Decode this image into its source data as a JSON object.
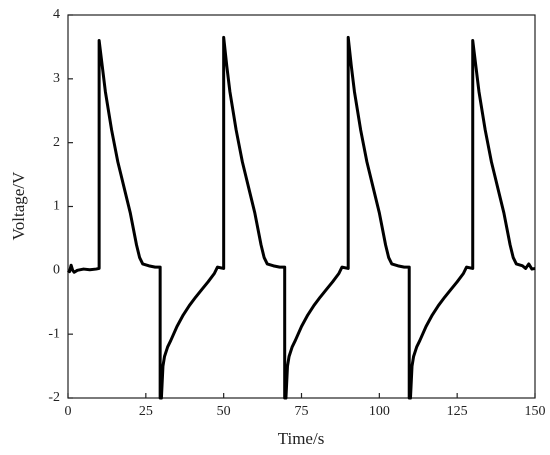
{
  "chart_data": {
    "type": "line",
    "xlabel": "Time/s",
    "ylabel": "Voltage/V",
    "xlim": [
      0,
      150
    ],
    "xticks": [
      0,
      25,
      50,
      75,
      100,
      125,
      150
    ],
    "ylim": [
      -2,
      4
    ],
    "yticks": [
      -2,
      -1,
      0,
      1,
      2,
      3,
      4
    ],
    "color": "#000000",
    "x": [
      0,
      0.5,
      1,
      1.5,
      2,
      3,
      5,
      7,
      9,
      10,
      10,
      11,
      12,
      13,
      14,
      15,
      16,
      17,
      18,
      19,
      20,
      21,
      22,
      23,
      24,
      26,
      28,
      29.6,
      29.6,
      30,
      30.5,
      31,
      32,
      33,
      35,
      37,
      39,
      41,
      43,
      45,
      47,
      48,
      50,
      50,
      51,
      52,
      53,
      54,
      55,
      56,
      57,
      58,
      59,
      60,
      61,
      62,
      63,
      64,
      66,
      68,
      69.6,
      69.6,
      70,
      70.5,
      71,
      72,
      73,
      75,
      77,
      79,
      81,
      83,
      85,
      87,
      88,
      90,
      90,
      91,
      92,
      93,
      94,
      95,
      96,
      97,
      98,
      99,
      100,
      101,
      102,
      103,
      104,
      106,
      108,
      109.6,
      109.6,
      110,
      110.5,
      111,
      112,
      113,
      115,
      117,
      119,
      121,
      123,
      125,
      127,
      128,
      130,
      130,
      131,
      132,
      133,
      134,
      135,
      136,
      137,
      138,
      139,
      140,
      141,
      142,
      143,
      144,
      146,
      147,
      148,
      149,
      150
    ],
    "values": [
      0,
      -0.02,
      0.08,
      0,
      -0.03,
      0,
      0.02,
      0.01,
      0.02,
      0.03,
      3.6,
      3.2,
      2.8,
      2.5,
      2.2,
      1.95,
      1.7,
      1.5,
      1.3,
      1.1,
      0.9,
      0.65,
      0.4,
      0.2,
      0.1,
      0.07,
      0.05,
      0.05,
      -2,
      -2,
      -1.5,
      -1.35,
      -1.2,
      -1.1,
      -0.88,
      -0.7,
      -0.55,
      -0.42,
      -0.3,
      -0.18,
      -0.05,
      0.05,
      0.03,
      3.65,
      3.2,
      2.8,
      2.5,
      2.2,
      1.95,
      1.7,
      1.5,
      1.3,
      1.1,
      0.9,
      0.65,
      0.4,
      0.2,
      0.1,
      0.07,
      0.05,
      0.05,
      -2,
      -2,
      -1.5,
      -1.35,
      -1.2,
      -1.1,
      -0.88,
      -0.7,
      -0.55,
      -0.42,
      -0.3,
      -0.18,
      -0.05,
      0.05,
      0.03,
      3.65,
      3.2,
      2.8,
      2.5,
      2.2,
      1.95,
      1.7,
      1.5,
      1.3,
      1.1,
      0.9,
      0.65,
      0.4,
      0.2,
      0.1,
      0.07,
      0.05,
      0.05,
      -2,
      -2,
      -1.5,
      -1.35,
      -1.2,
      -1.1,
      -0.88,
      -0.7,
      -0.55,
      -0.42,
      -0.3,
      -0.18,
      -0.05,
      0.05,
      0.03,
      3.6,
      3.2,
      2.8,
      2.5,
      2.2,
      1.95,
      1.7,
      1.5,
      1.3,
      1.1,
      0.9,
      0.65,
      0.4,
      0.2,
      0.1,
      0.07,
      0.03,
      0.1,
      0.02,
      0.03
    ]
  }
}
